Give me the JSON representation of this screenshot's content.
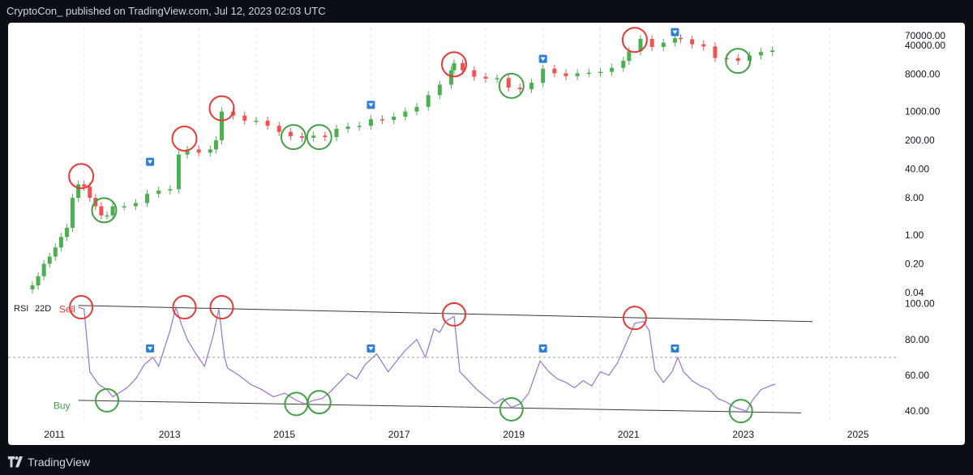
{
  "header": {
    "text": "CryptoCon_ published on TradingView.com, Jul 12, 2023 02:03 UTC"
  },
  "footer": {
    "brand": "TradingView"
  },
  "colors": {
    "background": "#0c0e15",
    "panel": "#ffffff",
    "up": "#26a69a",
    "up_green": "#4caf50",
    "down": "#ef5350",
    "rsi_line": "#9575cd",
    "sell_circle": "#e53935",
    "buy_circle": "#43a047",
    "marker": "#2f80d0",
    "channel_line": "#3a3a3a",
    "ref_line": "#9e9e9e"
  },
  "chart_data": [
    {
      "type": "candlestick",
      "title": "",
      "price_scale": "log",
      "ylim": [
        0.04,
        100000
      ],
      "y_tick_labels": [
        "70000.00",
        "40000.00",
        "8000.00",
        "1000.00",
        "200.00",
        "40.00",
        "8.00",
        "1.00",
        "0.20",
        "0.04"
      ],
      "y_ticks": [
        70000,
        40000,
        8000,
        1000,
        200,
        40,
        8,
        1,
        0.2,
        0.04
      ],
      "x_tick_labels": [
        "2011",
        "2013",
        "2015",
        "2017",
        "2019",
        "2021",
        "2023",
        "2025"
      ],
      "xlim": [
        2010.5,
        2025.2
      ],
      "series": [
        {
          "style": "monthly candles",
          "x": [
            2010.6,
            2010.7,
            2010.8,
            2010.9,
            2011.0,
            2011.1,
            2011.2,
            2011.3,
            2011.4,
            2011.5,
            2011.6,
            2011.7,
            2011.8,
            2011.9,
            2012.0,
            2012.2,
            2012.4,
            2012.6,
            2012.8,
            2013.0,
            2013.15,
            2013.3,
            2013.5,
            2013.7,
            2013.8,
            2013.9,
            2014.1,
            2014.3,
            2014.5,
            2014.7,
            2014.9,
            2015.1,
            2015.3,
            2015.5,
            2015.7,
            2015.9,
            2016.1,
            2016.3,
            2016.5,
            2016.7,
            2016.9,
            2017.1,
            2017.3,
            2017.5,
            2017.7,
            2017.9,
            2017.95,
            2018.1,
            2018.3,
            2018.5,
            2018.7,
            2018.9,
            2019.1,
            2019.3,
            2019.5,
            2019.7,
            2019.9,
            2020.1,
            2020.3,
            2020.5,
            2020.7,
            2020.9,
            2021.0,
            2021.2,
            2021.4,
            2021.6,
            2021.8,
            2021.9,
            2022.1,
            2022.3,
            2022.5,
            2022.7,
            2022.9,
            2023.1,
            2023.3,
            2023.5
          ],
          "close": [
            0.06,
            0.1,
            0.2,
            0.3,
            0.5,
            0.9,
            1.5,
            8,
            17,
            15,
            8,
            5,
            3,
            3,
            5,
            5,
            6,
            10,
            12,
            13,
            90,
            120,
            100,
            120,
            200,
            1000,
            800,
            600,
            600,
            450,
            320,
            250,
            230,
            260,
            240,
            380,
            430,
            450,
            650,
            620,
            750,
            1000,
            1300,
            2500,
            4500,
            10000,
            15000,
            10000,
            7000,
            6300,
            6500,
            3800,
            3500,
            5000,
            11000,
            8500,
            7200,
            8500,
            8800,
            9200,
            11500,
            17000,
            29000,
            58000,
            37000,
            47000,
            61000,
            57000,
            43000,
            38000,
            20000,
            19800,
            17000,
            23000,
            28000,
            30500
          ]
        }
      ],
      "signal_circles": [
        {
          "x": 2011.45,
          "price": 27,
          "kind": "sell"
        },
        {
          "x": 2011.85,
          "price": 4,
          "kind": "buy"
        },
        {
          "x": 2013.25,
          "price": 220,
          "kind": "sell"
        },
        {
          "x": 2013.9,
          "price": 1200,
          "kind": "sell"
        },
        {
          "x": 2015.15,
          "price": 240,
          "kind": "buy"
        },
        {
          "x": 2015.6,
          "price": 240,
          "kind": "buy"
        },
        {
          "x": 2017.95,
          "price": 14000,
          "kind": "sell"
        },
        {
          "x": 2018.95,
          "price": 4200,
          "kind": "buy"
        },
        {
          "x": 2021.1,
          "price": 55000,
          "kind": "sell"
        },
        {
          "x": 2022.9,
          "price": 17000,
          "kind": "buy"
        }
      ],
      "markers": [
        {
          "x": 2012.65,
          "price": 60
        },
        {
          "x": 2016.5,
          "price": 1450
        },
        {
          "x": 2019.5,
          "price": 19000
        },
        {
          "x": 2021.8,
          "price": 85000
        }
      ]
    },
    {
      "type": "line",
      "title": "RSI",
      "legend": {
        "name": "RSI",
        "param": "22D"
      },
      "ylim": [
        36,
        103
      ],
      "y_tick_labels": [
        "100.00",
        "80.00",
        "60.00",
        "40.00"
      ],
      "y_ticks": [
        100,
        80,
        60,
        40
      ],
      "reference_level": 70,
      "series": [
        {
          "name": "RSI",
          "x": [
            2011.4,
            2011.5,
            2011.6,
            2011.75,
            2011.9,
            2012.0,
            2012.1,
            2012.25,
            2012.4,
            2012.55,
            2012.7,
            2012.8,
            2012.9,
            2013.0,
            2013.1,
            2013.2,
            2013.3,
            2013.45,
            2013.6,
            2013.75,
            2013.85,
            2013.95,
            2014.0,
            2014.2,
            2014.4,
            2014.6,
            2014.8,
            2015.0,
            2015.2,
            2015.35,
            2015.5,
            2015.65,
            2015.8,
            2015.95,
            2016.1,
            2016.25,
            2016.4,
            2016.6,
            2016.8,
            2016.95,
            2017.1,
            2017.3,
            2017.45,
            2017.6,
            2017.7,
            2017.8,
            2017.95,
            2018.05,
            2018.2,
            2018.35,
            2018.5,
            2018.65,
            2018.8,
            2018.95,
            2019.1,
            2019.25,
            2019.45,
            2019.6,
            2019.75,
            2019.9,
            2020.05,
            2020.2,
            2020.35,
            2020.5,
            2020.65,
            2020.8,
            2020.95,
            2021.1,
            2021.25,
            2021.35,
            2021.45,
            2021.6,
            2021.75,
            2021.85,
            2021.95,
            2022.1,
            2022.25,
            2022.4,
            2022.55,
            2022.7,
            2022.85,
            2022.95,
            2023.05,
            2023.15,
            2023.3,
            2023.45,
            2023.55
          ],
          "values": [
            98,
            97,
            62,
            55,
            52,
            48,
            50,
            53,
            58,
            66,
            70,
            65,
            75,
            85,
            98,
            88,
            80,
            72,
            65,
            82,
            97,
            70,
            64,
            60,
            55,
            52,
            48,
            50,
            46,
            44,
            46,
            47,
            51,
            56,
            61,
            58,
            66,
            72,
            62,
            68,
            74,
            80,
            70,
            86,
            84,
            90,
            93,
            62,
            57,
            52,
            48,
            44,
            47,
            42,
            44,
            50,
            68,
            62,
            58,
            56,
            53,
            57,
            54,
            62,
            60,
            67,
            78,
            89,
            90,
            85,
            63,
            56,
            62,
            70,
            62,
            57,
            54,
            52,
            47,
            45,
            42,
            41,
            40,
            46,
            52,
            54,
            55
          ]
        }
      ],
      "signal_circles": [
        {
          "x": 2011.45,
          "value": 98,
          "kind": "sell"
        },
        {
          "x": 2011.9,
          "value": 46,
          "kind": "buy"
        },
        {
          "x": 2013.25,
          "value": 98,
          "kind": "sell"
        },
        {
          "x": 2013.9,
          "value": 98,
          "kind": "sell"
        },
        {
          "x": 2015.2,
          "value": 44,
          "kind": "buy"
        },
        {
          "x": 2015.6,
          "value": 45,
          "kind": "buy"
        },
        {
          "x": 2017.95,
          "value": 94,
          "kind": "sell"
        },
        {
          "x": 2018.95,
          "value": 41,
          "kind": "buy"
        },
        {
          "x": 2021.1,
          "value": 92,
          "kind": "sell"
        },
        {
          "x": 2022.95,
          "value": 40,
          "kind": "buy"
        }
      ],
      "markers": [
        {
          "x": 2012.65,
          "value": 75
        },
        {
          "x": 2016.5,
          "value": 75
        },
        {
          "x": 2019.5,
          "value": 75
        },
        {
          "x": 2021.8,
          "value": 75
        }
      ],
      "channel_lines": [
        {
          "x": [
            2011.4,
            2024.2
          ],
          "values": [
            99,
            90
          ]
        },
        {
          "x": [
            2011.4,
            2024.0
          ],
          "values": [
            46,
            39
          ]
        }
      ],
      "annotations": [
        {
          "text": "Sell",
          "x": 2011.15,
          "value": 97,
          "kind": "sell"
        },
        {
          "text": "Buy",
          "x": 2011.05,
          "value": 43,
          "kind": "buy"
        }
      ]
    }
  ]
}
